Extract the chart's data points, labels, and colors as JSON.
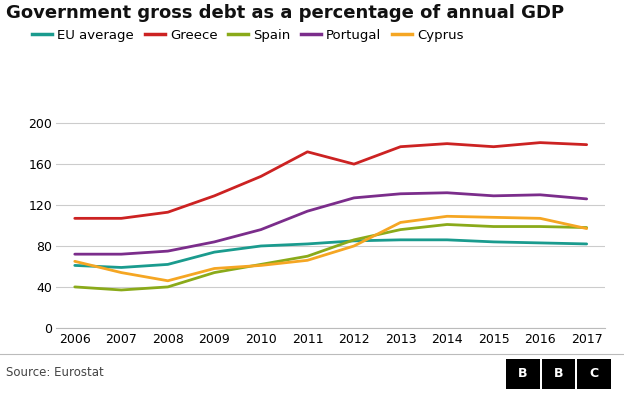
{
  "title": "Government gross debt as a percentage of annual GDP",
  "source": "Source: Eurostat",
  "years": [
    2006,
    2007,
    2008,
    2009,
    2010,
    2011,
    2012,
    2013,
    2014,
    2015,
    2016,
    2017
  ],
  "series": {
    "EU average": {
      "color": "#1a9b8e",
      "values": [
        61,
        59,
        62,
        74,
        80,
        82,
        85,
        86,
        86,
        84,
        83,
        82
      ]
    },
    "Greece": {
      "color": "#cc2222",
      "values": [
        107,
        107,
        113,
        129,
        148,
        172,
        160,
        177,
        180,
        177,
        181,
        179
      ]
    },
    "Spain": {
      "color": "#8aaa1a",
      "values": [
        40,
        37,
        40,
        54,
        62,
        70,
        86,
        96,
        101,
        99,
        99,
        98
      ]
    },
    "Portugal": {
      "color": "#7b2d8b",
      "values": [
        72,
        72,
        75,
        84,
        96,
        114,
        127,
        131,
        132,
        129,
        130,
        126
      ]
    },
    "Cyprus": {
      "color": "#f5a623",
      "values": [
        65,
        54,
        46,
        58,
        61,
        66,
        80,
        103,
        109,
        108,
        107,
        97
      ]
    }
  },
  "ylim": [
    0,
    220
  ],
  "yticks": [
    0,
    40,
    80,
    120,
    160,
    200
  ],
  "legend_order": [
    "EU average",
    "Greece",
    "Spain",
    "Portugal",
    "Cyprus"
  ],
  "bg_color": "#ffffff",
  "grid_color": "#cccccc",
  "linewidth": 2.0,
  "title_fontsize": 13,
  "legend_fontsize": 9.5,
  "tick_fontsize": 9,
  "source_fontsize": 8.5
}
